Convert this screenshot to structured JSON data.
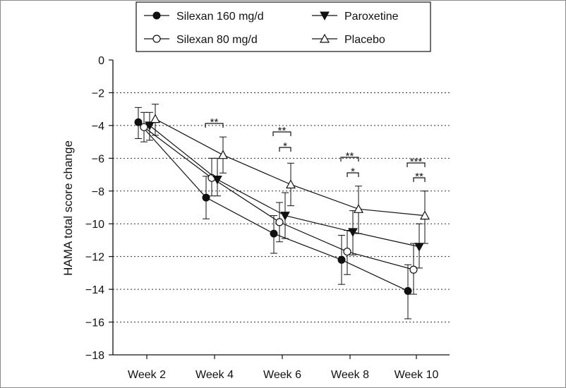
{
  "chart_data": {
    "type": "line",
    "title": "",
    "xlabel": "",
    "ylabel": "HAMA total score change",
    "categories": [
      "Week 2",
      "Week 4",
      "Week 6",
      "Week 8",
      "Week 10"
    ],
    "ylim": [
      -18,
      0
    ],
    "yticks": [
      0,
      -2,
      -4,
      -6,
      -8,
      -10,
      -12,
      -14,
      -16,
      -18
    ],
    "ytick_labels": [
      "0",
      "−2",
      "−4",
      "−6",
      "−8",
      "−10",
      "−12",
      "−14",
      "−16",
      "−18"
    ],
    "grid": "horizontal dotted",
    "legend_position": "top",
    "series": [
      {
        "name": "Silexan 160 mg/d",
        "marker": "filled-circle",
        "color": "#111111",
        "values": [
          -3.8,
          -8.4,
          -10.6,
          -12.2,
          -14.1
        ],
        "error_low": [
          -4.8,
          -9.7,
          -11.8,
          -13.7,
          -15.8
        ],
        "error_high": [
          -2.9,
          -7.1,
          -9.5,
          -10.7,
          -12.5
        ]
      },
      {
        "name": "Silexan 80 mg/d",
        "marker": "open-circle",
        "color": "#111111",
        "values": [
          -4.1,
          -7.2,
          -9.9,
          -11.7,
          -12.8
        ],
        "error_low": [
          -5.0,
          -8.3,
          -11.1,
          -13.1,
          -14.3
        ],
        "error_high": [
          -3.2,
          -6.0,
          -8.7,
          -10.4,
          -11.2
        ]
      },
      {
        "name": "Paroxetine",
        "marker": "filled-triangle-down",
        "color": "#111111",
        "values": [
          -4.0,
          -7.3,
          -9.5,
          -10.5,
          -11.4
        ],
        "error_low": [
          -4.9,
          -8.3,
          -10.9,
          -11.9,
          -12.7
        ],
        "error_high": [
          -3.2,
          -6.0,
          -8.1,
          -9.2,
          -10.0
        ]
      },
      {
        "name": "Placebo",
        "marker": "open-triangle-up",
        "color": "#111111",
        "values": [
          -3.6,
          -5.8,
          -7.6,
          -9.1,
          -9.5
        ],
        "error_low": [
          -4.6,
          -6.9,
          -8.9,
          -10.6,
          -11.2
        ],
        "error_high": [
          -2.7,
          -4.7,
          -6.3,
          -7.7,
          -8.0
        ]
      }
    ],
    "annotations": [
      {
        "text": "**",
        "category": "Week 4",
        "level": 1
      },
      {
        "text": "**",
        "category": "Week 6",
        "level": 1
      },
      {
        "text": "*",
        "category": "Week 6",
        "level": 2
      },
      {
        "text": "**",
        "category": "Week 8",
        "level": 1
      },
      {
        "text": "*",
        "category": "Week 8",
        "level": 2
      },
      {
        "text": "***",
        "category": "Week 10",
        "level": 1
      },
      {
        "text": "**",
        "category": "Week 10",
        "level": 2
      }
    ]
  }
}
